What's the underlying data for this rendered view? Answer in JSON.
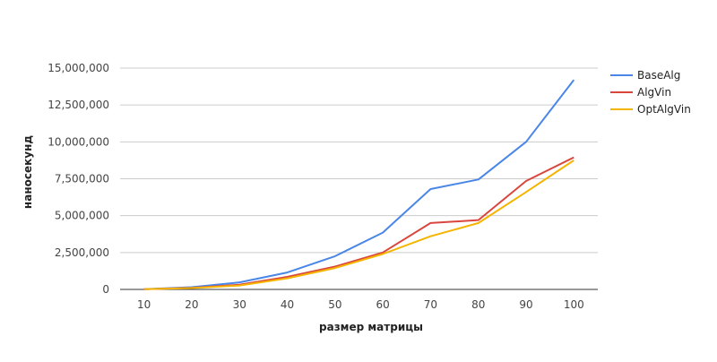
{
  "chart_data": {
    "type": "line",
    "title": "",
    "xlabel": "размер матрицы",
    "ylabel": "наносекунд",
    "x": [
      10,
      20,
      30,
      40,
      50,
      60,
      70,
      80,
      90,
      100
    ],
    "x_tick_labels": [
      "10",
      "20",
      "30",
      "40",
      "50",
      "60",
      "70",
      "80",
      "90",
      "100"
    ],
    "ylim": [
      0,
      15000000
    ],
    "y_ticks": [
      0,
      2500000,
      5000000,
      7500000,
      10000000,
      12500000,
      15000000
    ],
    "y_tick_labels": [
      "0",
      "2,500,000",
      "5,000,000",
      "7,500,000",
      "10,000,000",
      "12,500,000",
      "15,000,000"
    ],
    "grid": true,
    "legend_position": "right",
    "series": [
      {
        "name": "BaseAlg",
        "color": "#4a86e8",
        "values": [
          20000,
          150000,
          480000,
          1150000,
          2250000,
          3850000,
          6800000,
          7450000,
          10000000,
          14200000
        ]
      },
      {
        "name": "AlgVin",
        "color": "#d9463e",
        "values": [
          15000,
          110000,
          320000,
          850000,
          1550000,
          2500000,
          4500000,
          4700000,
          7350000,
          8950000
        ]
      },
      {
        "name": "OptAlgVin",
        "color": "#f4b400",
        "values": [
          10000,
          90000,
          270000,
          750000,
          1450000,
          2400000,
          3600000,
          4500000,
          6600000,
          8750000
        ]
      }
    ]
  }
}
